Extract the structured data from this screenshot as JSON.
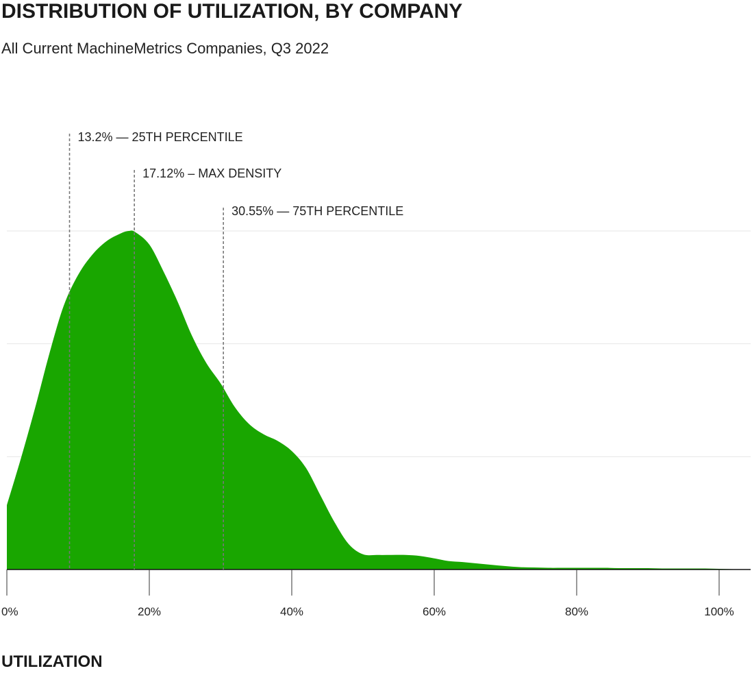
{
  "chart_data": {
    "type": "area",
    "title": "DISTRIBUTION OF UTILIZATION, BY COMPANY",
    "subtitle": "All Current MachineMetrics Companies, Q3 2022",
    "xlabel": "UTILIZATION",
    "ylabel": "",
    "xlim": [
      0,
      105
    ],
    "ylim": [
      0,
      1
    ],
    "x_ticks": [
      0,
      20,
      40,
      60,
      80,
      100
    ],
    "x_tick_labels": [
      "0%",
      "20%",
      "40%",
      "60%",
      "80%",
      "100%"
    ],
    "grid": "horizontal",
    "fill_color": "#19a600",
    "series": [
      {
        "x": [
          0,
          2,
          4,
          6,
          8,
          10,
          12,
          14,
          16,
          17.12,
          18,
          20,
          22,
          24,
          26,
          28,
          30,
          32,
          34,
          36,
          38,
          40,
          42,
          44,
          46,
          48,
          50,
          52,
          54,
          56,
          58,
          60,
          62,
          64,
          66,
          68,
          70,
          72,
          74,
          76,
          78,
          80,
          82,
          84,
          86,
          88,
          90,
          92,
          94,
          96,
          98,
          100,
          102,
          104
        ],
        "y": [
          0.19,
          0.33,
          0.48,
          0.64,
          0.78,
          0.87,
          0.93,
          0.97,
          0.993,
          1.0,
          0.997,
          0.96,
          0.88,
          0.79,
          0.69,
          0.61,
          0.55,
          0.48,
          0.43,
          0.4,
          0.38,
          0.35,
          0.3,
          0.22,
          0.14,
          0.075,
          0.045,
          0.043,
          0.043,
          0.043,
          0.04,
          0.033,
          0.025,
          0.022,
          0.018,
          0.014,
          0.01,
          0.007,
          0.006,
          0.005,
          0.005,
          0.005,
          0.005,
          0.005,
          0.004,
          0.004,
          0.004,
          0.003,
          0.003,
          0.003,
          0.003,
          0.002,
          0.001,
          0.0
        ]
      }
    ],
    "annotations": [
      {
        "x": 8.8,
        "label": "13.2% — 25TH PERCENTILE"
      },
      {
        "x": 17.9,
        "label": "17.12% – MAX DENSITY"
      },
      {
        "x": 30.4,
        "label": "30.55% — 75TH PERCENTILE"
      }
    ]
  }
}
